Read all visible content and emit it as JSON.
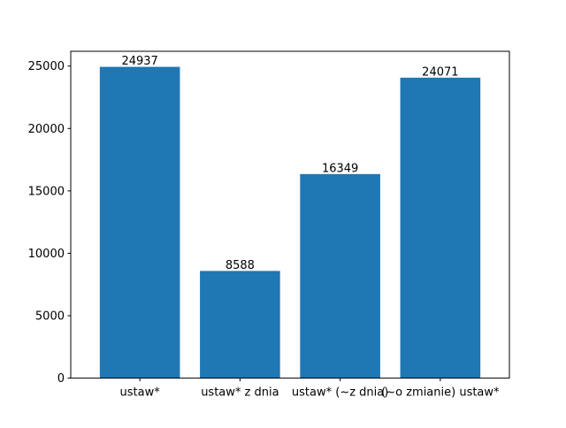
{
  "chart_data": {
    "type": "bar",
    "title": "",
    "xlabel": "",
    "ylabel": "",
    "categories": [
      "ustaw*",
      "ustaw* z dnia",
      "ustaw* (~z dnia)",
      "(~o zmianie) ustaw*"
    ],
    "values": [
      24937,
      8588,
      16349,
      24071
    ],
    "data_labels": [
      "24937",
      "8588",
      "16349",
      "24071"
    ],
    "y_ticks": [
      0,
      5000,
      10000,
      15000,
      20000,
      25000
    ],
    "y_tick_labels": [
      "0",
      "5000",
      "10000",
      "15000",
      "20000",
      "25000"
    ],
    "ylim": [
      0,
      26183.85
    ],
    "grid": false,
    "legend": "none",
    "colors": {
      "bar": "#1f77b4",
      "axis": "#000000",
      "background": "#ffffff"
    }
  }
}
